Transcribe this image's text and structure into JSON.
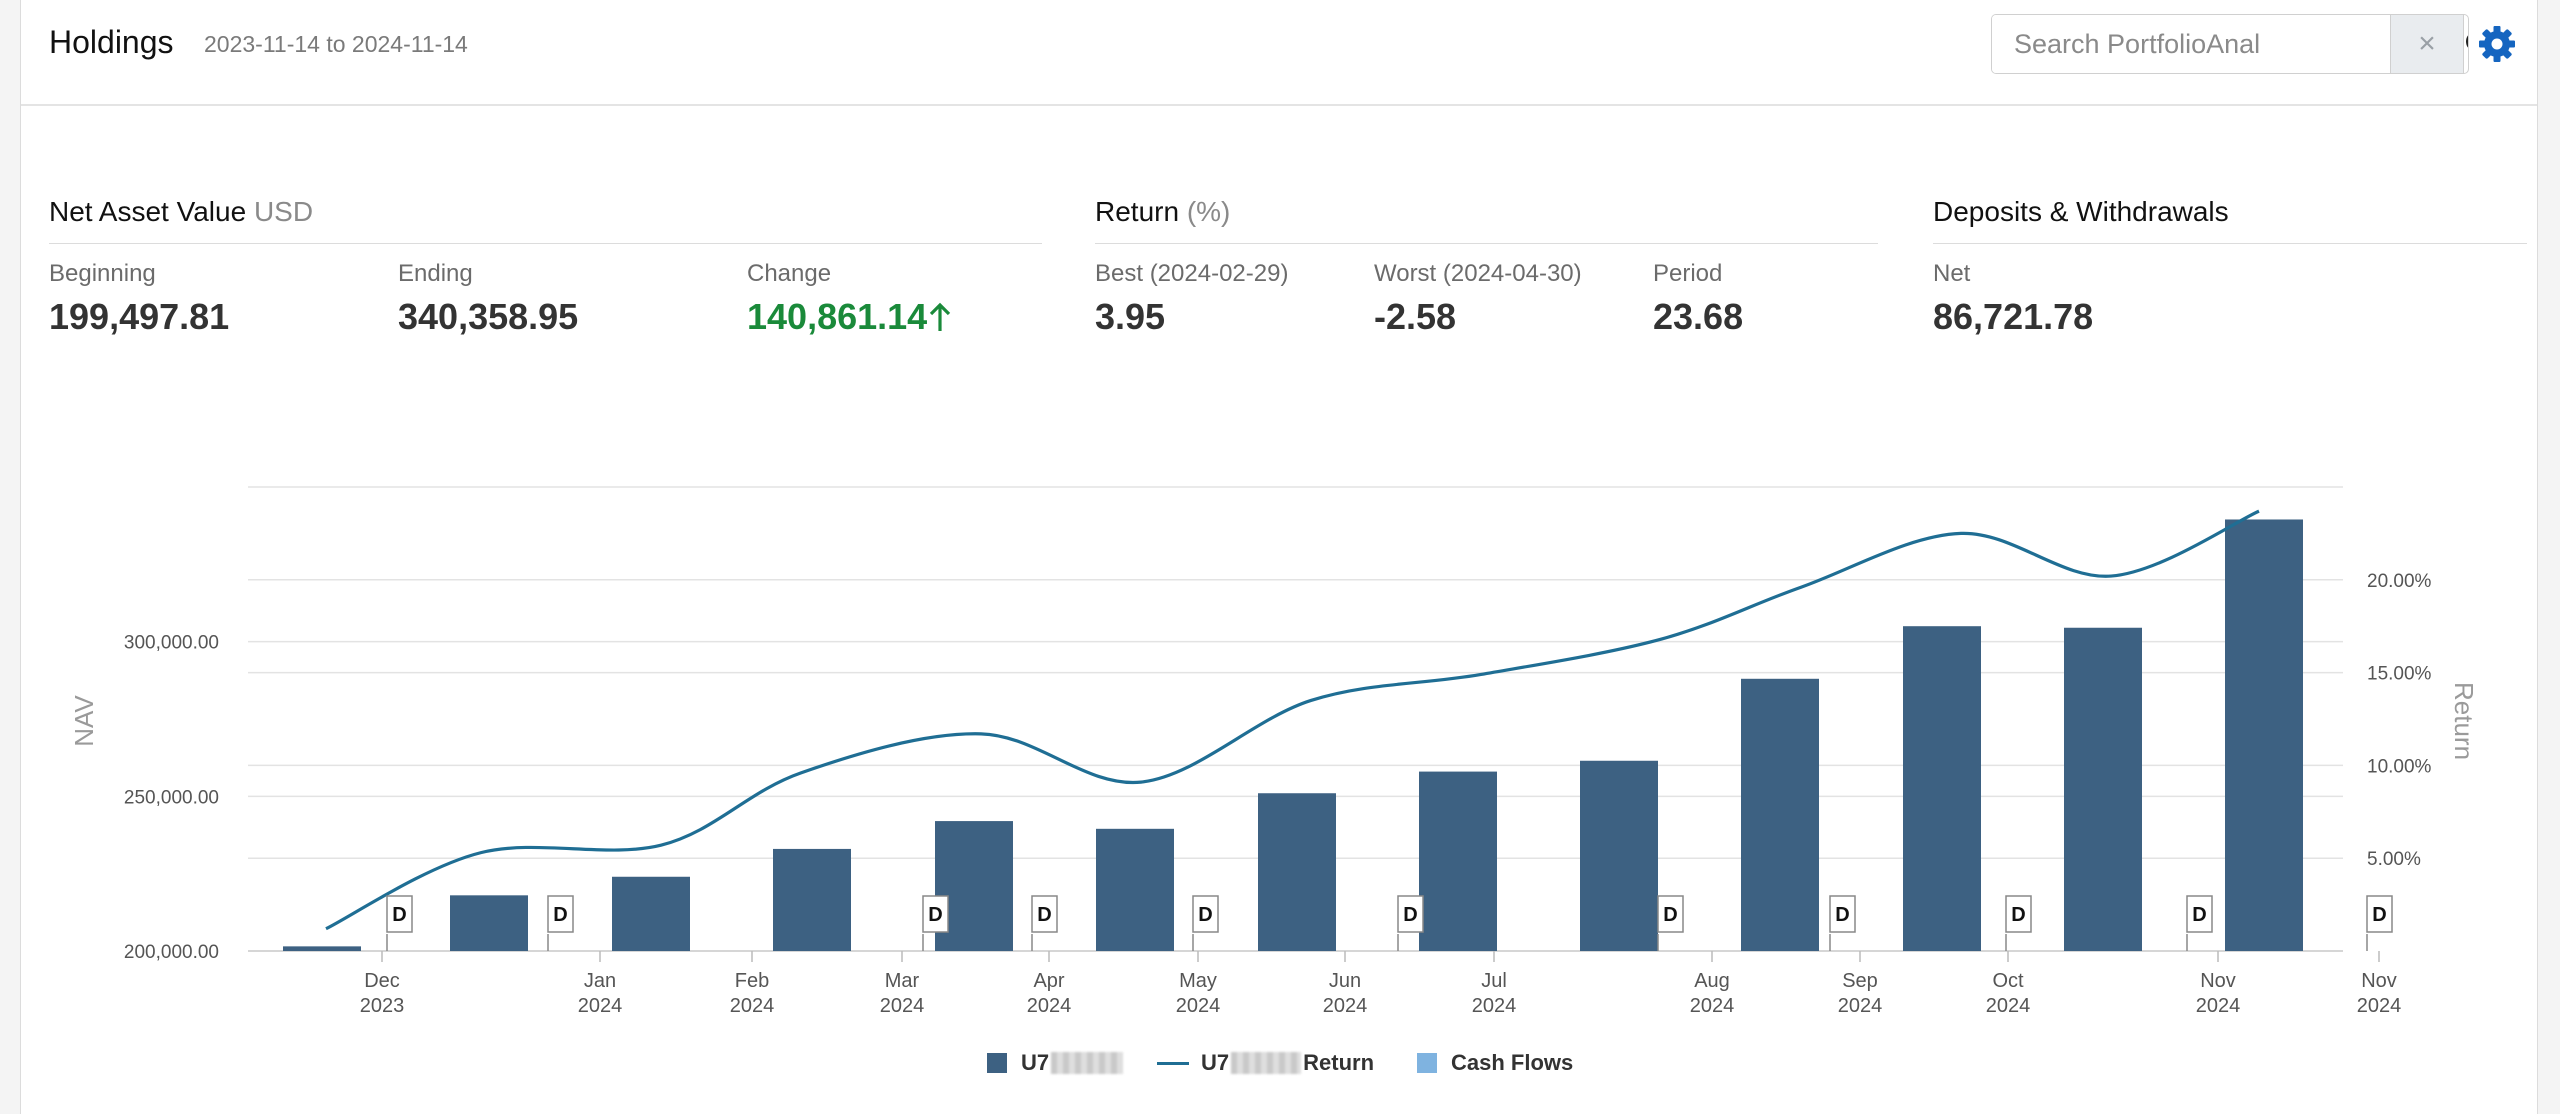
{
  "header": {
    "title": "Holdings",
    "date_range": "2023-11-14 to 2024-11-14",
    "search": {
      "placeholder": "Search PortfolioAnal",
      "value": ""
    },
    "clear_icon": "×"
  },
  "nav": {
    "title": "Net Asset Value",
    "unit": "USD",
    "beginning": {
      "label": "Beginning",
      "value": "199,497.81"
    },
    "ending": {
      "label": "Ending",
      "value": "340,358.95"
    },
    "change": {
      "label": "Change",
      "value": "140,861.14"
    }
  },
  "return": {
    "title": "Return",
    "unit": "(%)",
    "best": {
      "label": "Best (2024-02-29)",
      "value": "3.95"
    },
    "worst": {
      "label": "Worst (2024-04-30)",
      "value": "-2.58"
    },
    "period": {
      "label": "Period",
      "value": "23.68"
    }
  },
  "deposits": {
    "title": "Deposits & Withdrawals",
    "net": {
      "label": "Net",
      "value": "86,721.78"
    }
  },
  "legend": {
    "account_prefix": "U7",
    "return_suffix": "Return",
    "cash_flows": "Cash Flows"
  },
  "colors": {
    "bar": "#3d6182",
    "line": "#1f6e94",
    "cash": "#7fb3e0",
    "positive": "#1a8a3a",
    "gear": "#1565c0"
  },
  "chart_data": {
    "type": "bar",
    "y_left": {
      "label": "NAV",
      "min": 200000,
      "max": 350000,
      "ticks": [
        200000,
        250000,
        300000
      ],
      "tick_labels": [
        "200,000.00",
        "250,000.00",
        "300,000.00"
      ]
    },
    "y_right": {
      "label": "Return",
      "min": 0,
      "max": 25,
      "ticks": [
        5,
        10,
        15,
        20
      ],
      "tick_labels": [
        "5.00%",
        "10.00%",
        "15.00%",
        "20.00%"
      ]
    },
    "x": [
      "2023-12",
      "2024-01",
      "2024-02",
      "2024-03",
      "2024-04",
      "2024-05",
      "2024-06",
      "2024-07",
      "2024-08",
      "2024-09",
      "2024-10",
      "2024-11",
      "2024-11-14"
    ],
    "x_ticks": [
      {
        "month": "Dec",
        "year": "2023"
      },
      {
        "month": "Jan",
        "year": "2024"
      },
      {
        "month": "Feb",
        "year": "2024"
      },
      {
        "month": "Mar",
        "year": "2024"
      },
      {
        "month": "Apr",
        "year": "2024"
      },
      {
        "month": "May",
        "year": "2024"
      },
      {
        "month": "Jun",
        "year": "2024"
      },
      {
        "month": "Jul",
        "year": "2024"
      },
      {
        "month": "Aug",
        "year": "2024"
      },
      {
        "month": "Sep",
        "year": "2024"
      },
      {
        "month": "Oct",
        "year": "2024"
      },
      {
        "month": "Nov",
        "year": "2024"
      },
      {
        "month": "Nov",
        "year": "2024"
      }
    ],
    "series": [
      {
        "kind": "bar",
        "axis": "left",
        "values": [
          201500,
          218000,
          224000,
          233000,
          242000,
          239500,
          251000,
          258000,
          261500,
          288000,
          305000,
          304500,
          339500
        ]
      },
      {
        "name": "Return",
        "kind": "line",
        "axis": "right",
        "values": [
          1.2,
          5.3,
          5.7,
          9.6,
          11.7,
          9.1,
          13.5,
          14.9,
          16.8,
          19.6,
          22.5,
          20.2,
          23.7
        ]
      }
    ],
    "cash_flow_flags": [
      "D",
      "D",
      "D",
      "D",
      "D",
      "D",
      "D",
      "D",
      "D",
      "D",
      "D"
    ],
    "grid": true,
    "legend_position": "bottom-center"
  }
}
